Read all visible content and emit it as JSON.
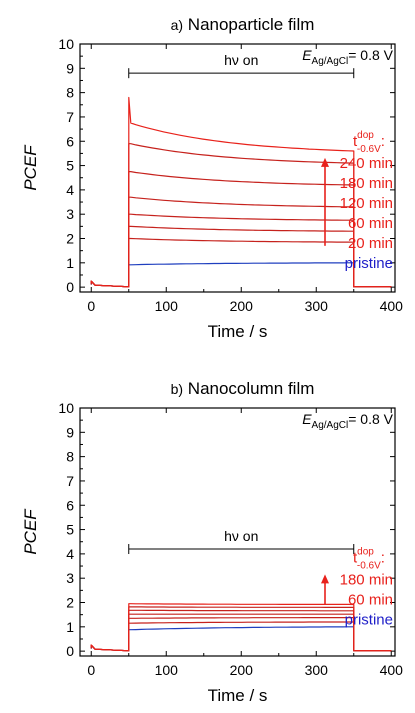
{
  "chart_data": [
    {
      "type": "line",
      "panel_label": "a)",
      "title": "Nanoparticle film",
      "xlabel": "Time / s",
      "ylabel": "PCEF",
      "xlim": [
        -15,
        405
      ],
      "ylim": [
        -0.2,
        10
      ],
      "xticks": [
        0,
        100,
        200,
        300,
        400
      ],
      "yticks": [
        0,
        1,
        2,
        3,
        4,
        5,
        6,
        7,
        8,
        9,
        10
      ],
      "potential_label": {
        "symbol": "E",
        "subscript": "Ag/AgCl",
        "value": "= 0.8 V"
      },
      "illumination": {
        "label": "hν on",
        "start": 50,
        "end": 350
      },
      "legend": {
        "header": {
          "base": "t",
          "sup": "dop",
          "sub": "-0.6V",
          "suffix": ":"
        },
        "items": [
          {
            "label": "240 min",
            "color": "#e8211c"
          },
          {
            "label": "180 min",
            "color": "#e8211c"
          },
          {
            "label": "120 min",
            "color": "#e8211c"
          },
          {
            "label": "60 min",
            "color": "#e8211c"
          },
          {
            "label": "20 min",
            "color": "#e8211c"
          },
          {
            "label": "pristine",
            "color": "#1f1fc8"
          }
        ],
        "arrow_color": "#e8211c"
      },
      "series": [
        {
          "color": "#1f3fbf",
          "on_start": 50,
          "off_end": 350,
          "values": [
            0.92,
            1.0
          ],
          "spike": null
        },
        {
          "color": "#c6221d",
          "on_start": 50,
          "off_end": 350,
          "values": [
            2.0,
            1.85
          ],
          "spike": null
        },
        {
          "color": "#c6221d",
          "on_start": 50,
          "off_end": 350,
          "values": [
            2.5,
            2.3
          ],
          "spike": null
        },
        {
          "color": "#c6221d",
          "on_start": 50,
          "off_end": 350,
          "values": [
            3.0,
            2.75
          ],
          "spike": null
        },
        {
          "color": "#c6221d",
          "on_start": 50,
          "off_end": 350,
          "values": [
            3.7,
            3.3
          ],
          "spike": null
        },
        {
          "color": "#c6221d",
          "on_start": 50,
          "off_end": 350,
          "values": [
            4.75,
            4.2
          ],
          "spike": null
        },
        {
          "color": "#c6221d",
          "on_start": 50,
          "off_end": 350,
          "values": [
            5.9,
            5.1
          ],
          "spike": null
        },
        {
          "color": "#e8221b",
          "on_start": 50,
          "off_end": 350,
          "values": [
            6.75,
            5.6
          ],
          "spike": 7.8
        }
      ]
    },
    {
      "type": "line",
      "panel_label": "b)",
      "title": "Nanocolumn film",
      "xlabel": "Time / s",
      "ylabel": "PCEF",
      "xlim": [
        -15,
        405
      ],
      "ylim": [
        -0.2,
        10
      ],
      "xticks": [
        0,
        100,
        200,
        300,
        400
      ],
      "yticks": [
        0,
        1,
        2,
        3,
        4,
        5,
        6,
        7,
        8,
        9,
        10
      ],
      "potential_label": {
        "symbol": "E",
        "subscript": "Ag/AgCl",
        "value": "= 0.8 V"
      },
      "illumination": {
        "label": "hν on",
        "start": 50,
        "end": 350
      },
      "legend": {
        "header": {
          "base": "t",
          "sup": "dop",
          "sub": "-0.6V",
          "suffix": ":"
        },
        "items": [
          {
            "label": "180 min",
            "color": "#e8211c"
          },
          {
            "label": "60 min",
            "color": "#e8211c"
          },
          {
            "label": "pristine",
            "color": "#1f1fc8"
          }
        ],
        "arrow_color": "#e8211c"
      },
      "series": [
        {
          "color": "#1f3fbf",
          "on_start": 50,
          "off_end": 350,
          "values": [
            0.88,
            1.0
          ],
          "spike": null
        },
        {
          "color": "#c6221d",
          "on_start": 50,
          "off_end": 350,
          "values": [
            1.15,
            1.2
          ],
          "spike": null
        },
        {
          "color": "#c6221d",
          "on_start": 50,
          "off_end": 350,
          "values": [
            1.35,
            1.38
          ],
          "spike": null
        },
        {
          "color": "#c6221d",
          "on_start": 50,
          "off_end": 350,
          "values": [
            1.52,
            1.52
          ],
          "spike": null
        },
        {
          "color": "#c6221d",
          "on_start": 50,
          "off_end": 350,
          "values": [
            1.68,
            1.66
          ],
          "spike": null
        },
        {
          "color": "#c6221d",
          "on_start": 50,
          "off_end": 350,
          "values": [
            1.82,
            1.8
          ],
          "spike": null
        },
        {
          "color": "#e8221b",
          "on_start": 50,
          "off_end": 350,
          "values": [
            1.95,
            1.92
          ],
          "spike": null
        }
      ]
    }
  ]
}
